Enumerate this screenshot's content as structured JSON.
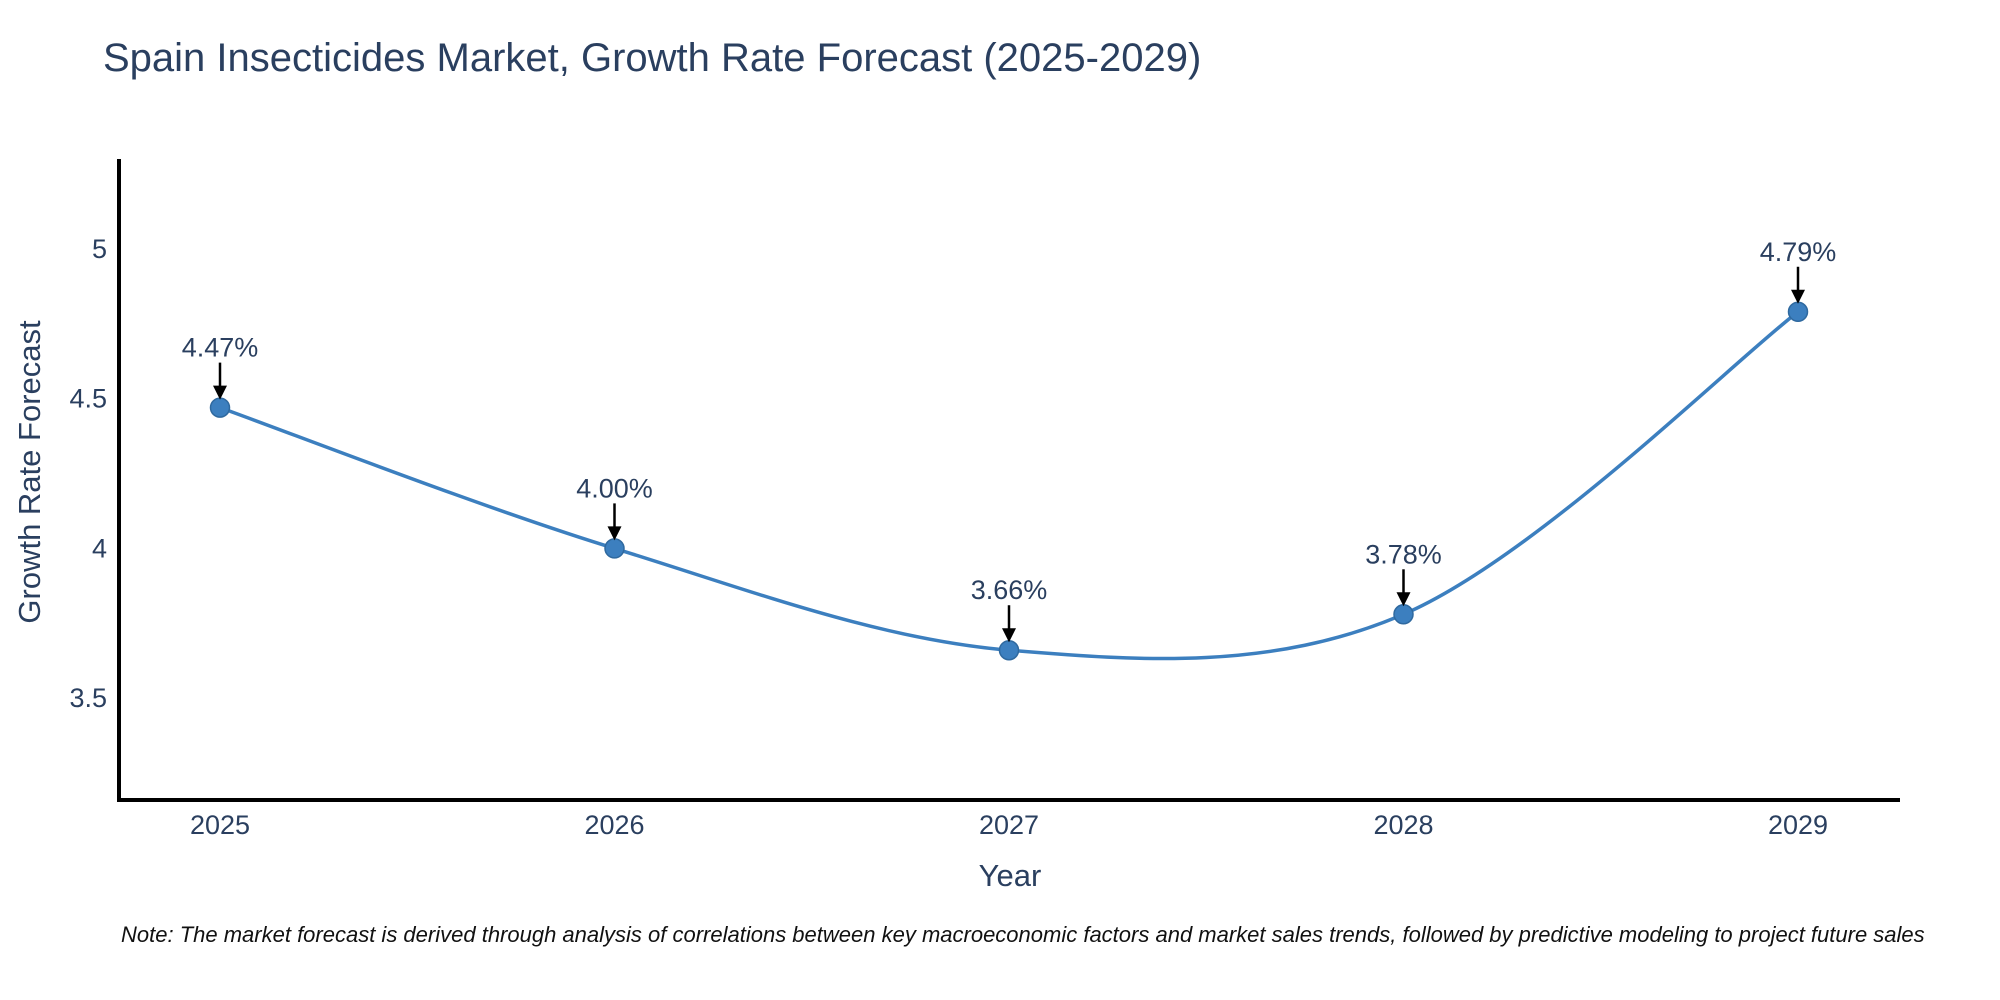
{
  "page": {
    "background": "#ffffff"
  },
  "chart_data": {
    "type": "line",
    "title": "Spain Insecticides Market, Growth Rate Forecast (2025-2029)",
    "xlabel": "Year",
    "ylabel": "Growth Rate Forecast",
    "categories": [
      "2025",
      "2026",
      "2027",
      "2028",
      "2029"
    ],
    "series": [
      {
        "name": "Growth Rate Forecast",
        "values": [
          4.47,
          4.0,
          3.66,
          3.78,
          4.79
        ],
        "point_labels": [
          "4.47%",
          "4.00%",
          "3.66%",
          "3.78%",
          "4.79%"
        ]
      }
    ],
    "ytick_values": [
      3.5,
      4,
      4.5,
      5
    ],
    "ytick_labels": [
      "3.5",
      "4",
      "4.5",
      "5"
    ],
    "ylim": [
      3.16,
      5.3
    ],
    "grid": false,
    "legend_position": "none",
    "curve": "spline",
    "annotations_have_arrows": true,
    "colors": {
      "line": "#3c7fbf",
      "marker": "#3c7fbf",
      "marker_edge": "#2f699f",
      "axis": "#000000",
      "text": "#2a3f5f",
      "arrow": "#000000",
      "note": "#111111"
    }
  },
  "note": {
    "text": "Note: The market forecast is derived through analysis of correlations between key macroeconomic factors and market sales trends, followed by predictive modeling to project future sales"
  }
}
